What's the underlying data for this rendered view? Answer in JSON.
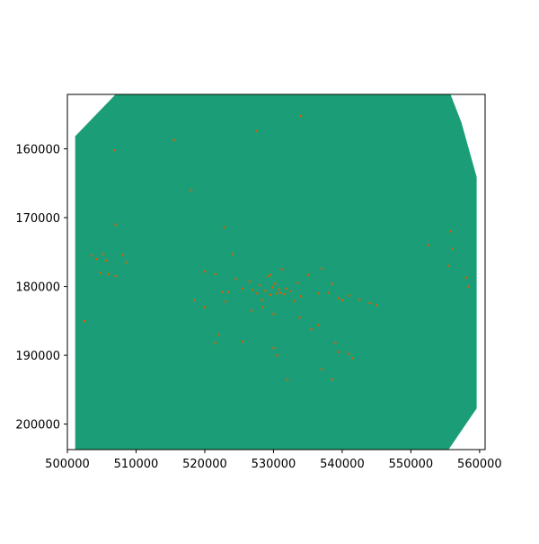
{
  "chart_data": {
    "type": "scatter",
    "title": "",
    "xlabel": "",
    "ylabel": "",
    "xlim": [
      500000,
      560800
    ],
    "ylim": [
      203700,
      152100
    ],
    "y_axis_inverted": true,
    "grid": false,
    "legend": "none",
    "colors": {
      "region_fill": "#1b9e77",
      "points": "#d95f02",
      "axes": "#000000",
      "background": "#ffffff"
    },
    "x_ticks": [
      {
        "value": 500000,
        "label": "500000"
      },
      {
        "value": 510000,
        "label": "510000"
      },
      {
        "value": 520000,
        "label": "520000"
      },
      {
        "value": 530000,
        "label": "530000"
      },
      {
        "value": 540000,
        "label": "540000"
      },
      {
        "value": 550000,
        "label": "550000"
      },
      {
        "value": 560000,
        "label": "560000"
      }
    ],
    "y_ticks": [
      {
        "value": 160000,
        "label": "160000"
      },
      {
        "value": 170000,
        "label": "170000"
      },
      {
        "value": 180000,
        "label": "180000"
      },
      {
        "value": 190000,
        "label": "190000"
      },
      {
        "value": 200000,
        "label": "200000"
      }
    ],
    "region_outline": [
      [
        501200,
        158200
      ],
      [
        507100,
        152100
      ],
      [
        555700,
        152100
      ],
      [
        557300,
        156200
      ],
      [
        559500,
        164100
      ],
      [
        559500,
        197700
      ],
      [
        555400,
        203700
      ],
      [
        501200,
        203700
      ]
    ],
    "series": [
      {
        "values": [
          [
            503500,
            175500
          ],
          [
            504200,
            176000
          ],
          [
            504800,
            178000
          ],
          [
            505200,
            175300
          ],
          [
            505600,
            176200
          ],
          [
            506000,
            178200
          ],
          [
            507000,
            178500
          ],
          [
            508000,
            175400
          ],
          [
            508500,
            176500
          ],
          [
            502500,
            185000
          ],
          [
            506800,
            160200
          ],
          [
            507000,
            171000
          ],
          [
            515500,
            158700
          ],
          [
            520000,
            177800
          ],
          [
            521500,
            178200
          ],
          [
            523000,
            182200
          ],
          [
            522000,
            187000
          ],
          [
            521500,
            188200
          ],
          [
            522500,
            180800
          ],
          [
            523500,
            180800
          ],
          [
            524500,
            178900
          ],
          [
            525500,
            180300
          ],
          [
            526500,
            179200
          ],
          [
            527000,
            180500
          ],
          [
            527600,
            181000
          ],
          [
            528000,
            179800
          ],
          [
            528300,
            182000
          ],
          [
            528800,
            180600
          ],
          [
            529200,
            178500
          ],
          [
            529500,
            181200
          ],
          [
            529800,
            180100
          ],
          [
            530200,
            179600
          ],
          [
            530500,
            181000
          ],
          [
            530800,
            180400
          ],
          [
            531000,
            180900
          ],
          [
            531500,
            181100
          ],
          [
            531800,
            180300
          ],
          [
            532500,
            180700
          ],
          [
            533000,
            182100
          ],
          [
            533500,
            179500
          ],
          [
            534000,
            181400
          ],
          [
            535000,
            178300
          ],
          [
            536500,
            181000
          ],
          [
            537000,
            177400
          ],
          [
            538000,
            180900
          ],
          [
            538500,
            179600
          ],
          [
            539500,
            181700
          ],
          [
            540000,
            182000
          ],
          [
            541000,
            181300
          ],
          [
            542500,
            181900
          ],
          [
            544000,
            182400
          ],
          [
            545000,
            182700
          ],
          [
            539000,
            188200
          ],
          [
            539500,
            189500
          ],
          [
            541000,
            189800
          ],
          [
            541500,
            190400
          ],
          [
            537000,
            192000
          ],
          [
            538500,
            193500
          ],
          [
            530000,
            188900
          ],
          [
            530500,
            190000
          ],
          [
            525500,
            188000
          ],
          [
            520000,
            183000
          ],
          [
            518500,
            182000
          ],
          [
            534000,
            155200
          ],
          [
            555500,
            177000
          ],
          [
            555800,
            172000
          ],
          [
            558000,
            178700
          ],
          [
            552500,
            174000
          ],
          [
            556000,
            174500
          ],
          [
            558300,
            180000
          ],
          [
            527500,
            157400
          ],
          [
            532000,
            193500
          ],
          [
            524000,
            175300
          ],
          [
            518000,
            166000
          ],
          [
            522800,
            171400
          ],
          [
            529600,
            178300
          ],
          [
            531200,
            177500
          ],
          [
            526800,
            183500
          ],
          [
            528400,
            183000
          ],
          [
            530000,
            184000
          ],
          [
            533800,
            184500
          ],
          [
            535500,
            186200
          ],
          [
            536500,
            185600
          ]
        ]
      }
    ]
  }
}
